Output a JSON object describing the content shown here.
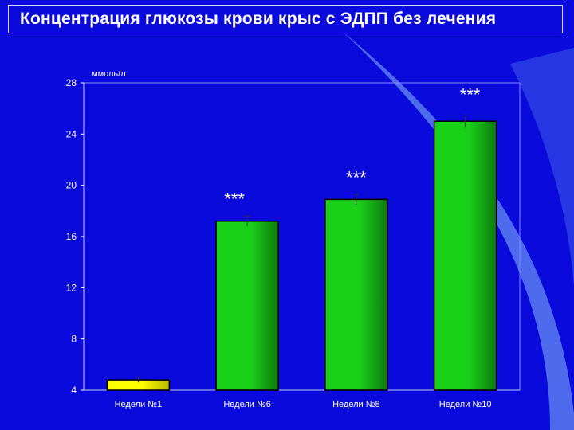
{
  "title": "Концентрация глюкозы крови крыс с ЭДПП без лечения",
  "colors": {
    "background": "#0a0adc",
    "accent_swoosh": "#5b7cf0",
    "bar_yellow": "#ffff00",
    "bar_green": "#19d119",
    "text": "#ffffff"
  },
  "chart_data": {
    "type": "bar",
    "title": "",
    "unit_label": "ммоль/л",
    "xlabel": "",
    "ylabel": "",
    "ylim": [
      4,
      28
    ],
    "yticks": [
      "4",
      "8",
      "12",
      "16",
      "20",
      "24",
      "28"
    ],
    "grid": false,
    "categories": [
      "Недели №1",
      "Недели №6",
      "Недели №8",
      "Недели №10"
    ],
    "values": [
      4.8,
      17.2,
      18.9,
      25.0
    ],
    "errors": [
      0.2,
      0.4,
      0.4,
      0.5
    ],
    "bar_colors": [
      "#ffff00",
      "#19d119",
      "#19d119",
      "#19d119"
    ],
    "annotations": [
      "",
      "***",
      "***",
      "***"
    ]
  }
}
